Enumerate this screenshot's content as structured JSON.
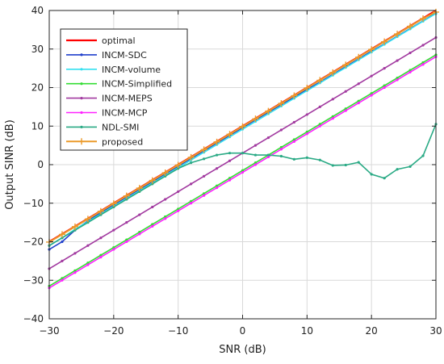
{
  "chart_data": {
    "type": "line",
    "title": "",
    "xlabel": "SNR (dB)",
    "ylabel": "Output SINR (dB)",
    "xlim": [
      -30,
      30
    ],
    "ylim": [
      -40,
      40
    ],
    "xticks": [
      -30,
      -20,
      -10,
      0,
      10,
      20,
      30
    ],
    "yticks": [
      -40,
      -30,
      -20,
      -10,
      0,
      10,
      20,
      30,
      40
    ],
    "xtick_labels": [
      "−30",
      "−20",
      "−10",
      "0",
      "10",
      "20",
      "30"
    ],
    "ytick_labels": [
      "−40",
      "−30",
      "−20",
      "−10",
      "0",
      "10",
      "20",
      "30",
      "40"
    ],
    "grid": true,
    "legend_position": "top-left",
    "series": [
      {
        "name": "optimal",
        "color": "#ff0000",
        "width": 2.2,
        "marker": "none",
        "x": [
          -30,
          -28,
          -26,
          -24,
          -22,
          -20,
          -18,
          -16,
          -14,
          -12,
          -10,
          -8,
          -6,
          -4,
          -2,
          0,
          2,
          4,
          6,
          8,
          10,
          12,
          14,
          16,
          18,
          20,
          22,
          24,
          26,
          28,
          30
        ],
        "y": [
          -20,
          -18,
          -16,
          -14,
          -12,
          -10,
          -8,
          -6,
          -4,
          -2,
          0,
          2,
          4,
          6,
          8,
          10,
          12,
          14,
          16,
          18,
          20,
          22,
          24,
          26,
          28,
          30,
          32,
          34,
          36,
          38,
          40
        ]
      },
      {
        "name": "INCM-SDC",
        "color": "#1f3fcc",
        "width": 1.6,
        "marker": "dot",
        "x": [
          -30,
          -28,
          -26,
          -24,
          -22,
          -20,
          -18,
          -16,
          -14,
          -12,
          -10,
          -8,
          -6,
          -4,
          -2,
          0,
          2,
          4,
          6,
          8,
          10,
          12,
          14,
          16,
          18,
          20,
          22,
          24,
          26,
          28,
          30
        ],
        "y": [
          -22,
          -20,
          -17,
          -14.6,
          -12.4,
          -10.4,
          -8.4,
          -6.4,
          -4.4,
          -2.4,
          -0.4,
          1.6,
          3.6,
          5.6,
          7.6,
          9.6,
          11.6,
          13.6,
          15.6,
          17.5,
          19.5,
          21.4,
          23.4,
          25.4,
          27.4,
          29.4,
          31.3,
          33.3,
          35.3,
          37.3,
          39.3
        ]
      },
      {
        "name": "INCM-volume",
        "color": "#33e0f0",
        "width": 1.6,
        "marker": "dot",
        "x": [
          -30,
          -28,
          -26,
          -24,
          -22,
          -20,
          -18,
          -16,
          -14,
          -12,
          -10,
          -8,
          -6,
          -4,
          -2,
          0,
          2,
          4,
          6,
          8,
          10,
          12,
          14,
          16,
          18,
          20,
          22,
          24,
          26,
          28,
          30
        ],
        "y": [
          -21,
          -19,
          -16.8,
          -14.8,
          -12.8,
          -10.8,
          -8.8,
          -6.8,
          -4.8,
          -2.8,
          -0.8,
          1.2,
          3.2,
          5.2,
          7.2,
          9.2,
          11.2,
          13.2,
          15.2,
          17.2,
          19.2,
          21.2,
          23.2,
          25.2,
          27.2,
          29.2,
          31.2,
          33.2,
          35.2,
          37.2,
          39.2
        ]
      },
      {
        "name": "INCM-Simplified",
        "color": "#33dd33",
        "width": 1.6,
        "marker": "dot",
        "x": [
          -30,
          -20,
          -10,
          0,
          10,
          20,
          30
        ],
        "y": [
          -31.5,
          -21.5,
          -11.5,
          -1.5,
          8.5,
          18.5,
          28.5
        ]
      },
      {
        "name": "INCM-MEPS",
        "color": "#a23aa0",
        "width": 1.6,
        "marker": "dot",
        "x": [
          -30,
          -20,
          -10,
          0,
          10,
          20,
          30
        ],
        "y": [
          -27,
          -17,
          -7,
          3,
          13,
          23,
          33
        ]
      },
      {
        "name": "INCM-MCP",
        "color": "#ff22ff",
        "width": 1.6,
        "marker": "dot",
        "x": [
          -30,
          -20,
          -10,
          0,
          10,
          20,
          30
        ],
        "y": [
          -32,
          -22,
          -12,
          -2,
          8,
          18,
          28
        ]
      },
      {
        "name": "NDL-SMI",
        "color": "#2aaa85",
        "width": 1.6,
        "marker": "dot",
        "x": [
          -30,
          -28,
          -26,
          -24,
          -22,
          -20,
          -18,
          -16,
          -14,
          -12,
          -10,
          -8,
          -6,
          -4,
          -2,
          0,
          2,
          4,
          6,
          8,
          10,
          12,
          14,
          16,
          18,
          20,
          22,
          24,
          26,
          28,
          30
        ],
        "y": [
          -21,
          -19,
          -17,
          -15,
          -13,
          -11,
          -9,
          -7,
          -5,
          -3,
          -1,
          0.5,
          1.5,
          2.5,
          3,
          3,
          2.5,
          2.5,
          2.2,
          1.4,
          1.8,
          1.2,
          -0.2,
          -0.1,
          0.6,
          -2.5,
          -3.5,
          -1.2,
          -0.5,
          2.3,
          10.5
        ]
      },
      {
        "name": "proposed",
        "color": "#eb9a2a",
        "width": 2,
        "marker": "plus",
        "x": [
          -30,
          -28,
          -26,
          -24,
          -22,
          -20,
          -18,
          -16,
          -14,
          -12,
          -10,
          -8,
          -6,
          -4,
          -2,
          0,
          2,
          4,
          6,
          8,
          10,
          12,
          14,
          16,
          18,
          20,
          22,
          24,
          26,
          28,
          30
        ],
        "y": [
          -20.1,
          -18.1,
          -16.1,
          -14.1,
          -12.1,
          -10.1,
          -8.1,
          -6.1,
          -4.1,
          -2.1,
          -0.1,
          1.9,
          3.9,
          5.9,
          7.9,
          9.9,
          11.9,
          13.9,
          15.9,
          17.9,
          19.9,
          21.9,
          23.9,
          25.9,
          27.9,
          29.9,
          31.9,
          33.9,
          35.9,
          37.9,
          39.6
        ]
      }
    ]
  }
}
